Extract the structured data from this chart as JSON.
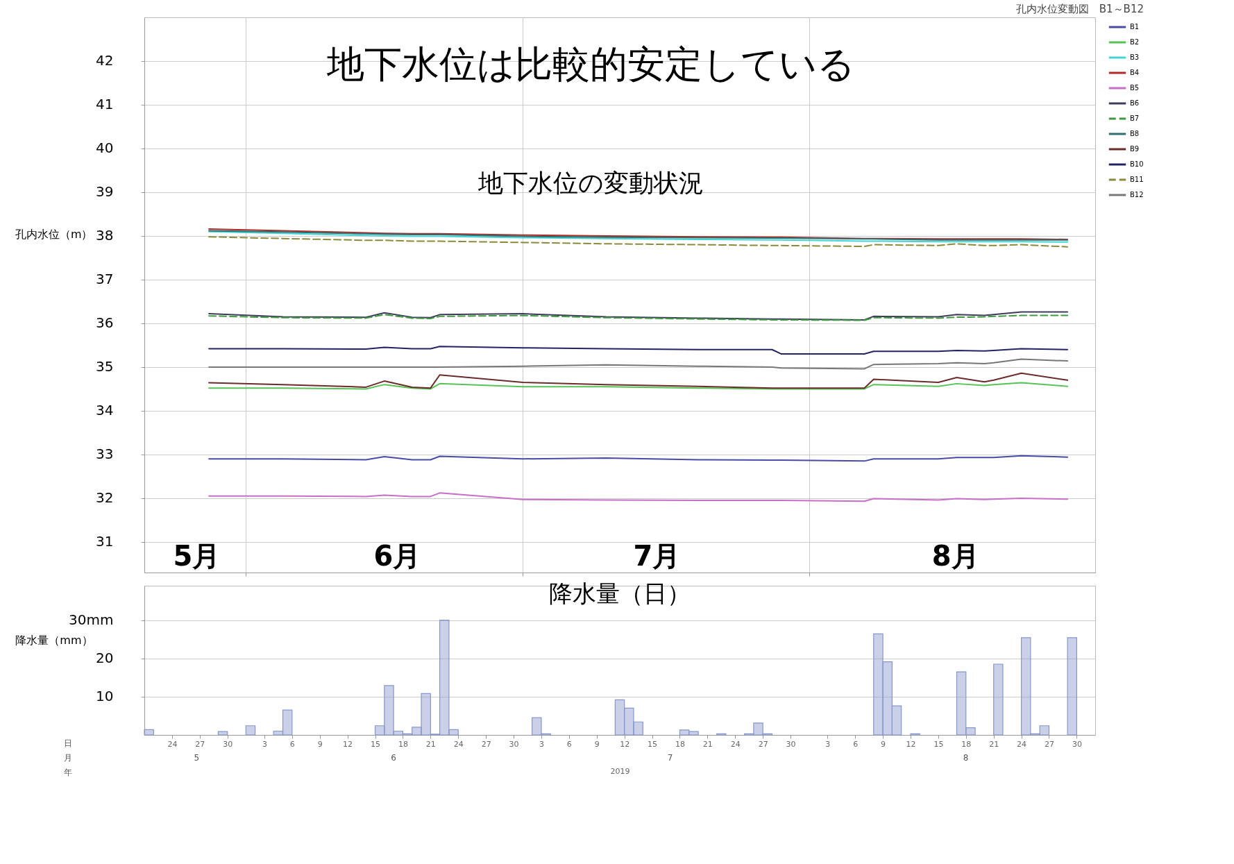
{
  "chart_data": [
    {
      "type": "line",
      "title": "孔内水位変動図　B1～B12",
      "ylabel": "孔内水位（m）",
      "annotations": [
        "地下水位は比較的安定している",
        "地下水位の変動状況",
        "5月",
        "6月",
        "7月",
        "8月"
      ],
      "x": [
        "2019-05-28",
        "2019-06-05",
        "2019-06-14",
        "2019-06-16",
        "2019-06-19",
        "2019-06-21",
        "2019-06-22",
        "2019-07-01",
        "2019-07-10",
        "2019-07-20",
        "2019-07-28",
        "2019-07-29",
        "2019-08-07",
        "2019-08-08",
        "2019-08-15",
        "2019-08-17",
        "2019-08-20",
        "2019-08-21",
        "2019-08-24",
        "2019-08-29"
      ],
      "series": [
        {
          "name": "B1",
          "color": "#4a4aa8",
          "values": [
            32.9,
            32.9,
            32.88,
            32.95,
            32.88,
            32.88,
            32.96,
            32.9,
            32.92,
            32.88,
            32.87,
            32.87,
            32.85,
            32.9,
            32.9,
            32.93,
            32.93,
            32.93,
            32.97,
            32.94
          ]
        },
        {
          "name": "B2",
          "color": "#55c455",
          "values": [
            34.52,
            34.52,
            34.5,
            34.6,
            34.52,
            34.5,
            34.62,
            34.55,
            34.55,
            34.52,
            34.5,
            34.5,
            34.5,
            34.6,
            34.56,
            34.62,
            34.58,
            34.6,
            34.64,
            34.56
          ]
        },
        {
          "name": "B3",
          "color": "#44d4d4",
          "values": [
            38.1,
            38.06,
            38.01,
            38.0,
            37.99,
            37.99,
            37.99,
            37.96,
            37.94,
            37.92,
            37.91,
            37.91,
            37.88,
            37.88,
            37.87,
            37.87,
            37.87,
            37.87,
            37.87,
            37.86
          ]
        },
        {
          "name": "B4",
          "color": "#b02a2a",
          "values": [
            38.16,
            38.12,
            38.07,
            38.06,
            38.05,
            38.05,
            38.05,
            38.02,
            38.0,
            37.98,
            37.97,
            37.97,
            37.94,
            37.94,
            37.93,
            37.93,
            37.93,
            37.93,
            37.93,
            37.92
          ]
        },
        {
          "name": "B5",
          "color": "#c86ec8",
          "values": [
            32.05,
            32.05,
            32.04,
            32.07,
            32.04,
            32.04,
            32.12,
            31.97,
            31.96,
            31.95,
            31.95,
            31.95,
            31.93,
            31.99,
            31.96,
            31.99,
            31.97,
            31.98,
            32.0,
            31.98
          ]
        },
        {
          "name": "B6",
          "color": "#3c3c5a",
          "values": [
            36.22,
            36.15,
            36.14,
            36.24,
            36.14,
            36.13,
            36.2,
            36.22,
            36.15,
            36.12,
            36.1,
            36.1,
            36.08,
            36.16,
            36.15,
            36.2,
            36.18,
            36.2,
            36.26,
            36.26
          ]
        },
        {
          "name": "B7",
          "color": "#3f9a3f",
          "line_style": "dashed",
          "values": [
            36.17,
            36.13,
            36.12,
            36.2,
            36.12,
            36.11,
            36.16,
            36.18,
            36.13,
            36.1,
            36.08,
            36.08,
            36.07,
            36.13,
            36.12,
            36.14,
            36.15,
            36.16,
            36.18,
            36.18
          ]
        },
        {
          "name": "B8",
          "color": "#2e6e6e",
          "values": [
            38.12,
            38.09,
            38.05,
            38.04,
            38.03,
            38.03,
            38.03,
            37.99,
            37.97,
            37.96,
            37.95,
            37.95,
            37.93,
            37.93,
            37.91,
            37.91,
            37.91,
            37.91,
            37.91,
            37.91
          ]
        },
        {
          "name": "B9",
          "color": "#6b2b2b",
          "values": [
            34.64,
            34.6,
            34.54,
            34.68,
            34.54,
            34.52,
            34.82,
            34.65,
            34.6,
            34.56,
            34.52,
            34.52,
            34.52,
            34.72,
            34.65,
            34.76,
            34.66,
            34.7,
            34.86,
            34.7
          ]
        },
        {
          "name": "B10",
          "color": "#222266",
          "values": [
            35.42,
            35.42,
            35.41,
            35.45,
            35.42,
            35.42,
            35.47,
            35.44,
            35.42,
            35.4,
            35.4,
            35.3,
            35.3,
            35.36,
            35.36,
            35.38,
            35.37,
            35.38,
            35.42,
            35.4
          ]
        },
        {
          "name": "B11",
          "color": "#8a8a3a",
          "line_style": "dashed",
          "values": [
            37.98,
            37.94,
            37.9,
            37.9,
            37.88,
            37.88,
            37.88,
            37.85,
            37.82,
            37.8,
            37.78,
            37.78,
            37.76,
            37.8,
            37.78,
            37.82,
            37.78,
            37.78,
            37.8,
            37.75
          ]
        },
        {
          "name": "B12",
          "color": "#777777",
          "values": [
            35.0,
            35.0,
            35.0,
            35.0,
            35.0,
            35.0,
            35.0,
            35.02,
            35.05,
            35.02,
            35.0,
            34.98,
            34.96,
            35.06,
            35.08,
            35.1,
            35.08,
            35.1,
            35.18,
            35.14
          ]
        }
      ],
      "xlim": [
        "2019-05-21",
        "2019-09-01"
      ],
      "ylim": [
        30.3,
        43
      ],
      "xticks": [
        {
          "value": "2019-06-01",
          "label": null
        },
        {
          "value": "2019-07-01",
          "label": null
        },
        {
          "value": "2019-08-01",
          "label": null
        }
      ],
      "yticks": [
        31,
        32,
        33,
        34,
        35,
        36,
        37,
        38,
        39,
        40,
        41,
        42
      ],
      "grid": true,
      "legend": "top right",
      "tick_labels": "y"
    },
    {
      "type": "bar",
      "title": "降水量（日）",
      "ylabel": "降水量（mm）",
      "xlabel": "2019",
      "annotations": [
        "日",
        "月",
        "年",
        "5",
        "6",
        "7",
        "8"
      ],
      "x": [
        "2019-05-21",
        "2019-05-29",
        "2019-06-01",
        "2019-06-04",
        "2019-06-05",
        "2019-06-15",
        "2019-06-16",
        "2019-06-17",
        "2019-06-18",
        "2019-06-19",
        "2019-06-20",
        "2019-06-21",
        "2019-06-22",
        "2019-06-23",
        "2019-07-02",
        "2019-07-03",
        "2019-07-11",
        "2019-07-12",
        "2019-07-13",
        "2019-07-18",
        "2019-07-19",
        "2019-07-22",
        "2019-07-25",
        "2019-07-26",
        "2019-07-27",
        "2019-08-08",
        "2019-08-09",
        "2019-08-10",
        "2019-08-12",
        "2019-08-17",
        "2019-08-18",
        "2019-08-21",
        "2019-08-24",
        "2019-08-25",
        "2019-08-26",
        "2019-08-29"
      ],
      "values": [
        1.4,
        0.9,
        2.4,
        1.0,
        6.5,
        2.4,
        12.9,
        1.0,
        0.3,
        2.0,
        10.8,
        0.2,
        30.0,
        1.4,
        4.5,
        0.3,
        9.2,
        7.0,
        3.4,
        1.3,
        0.9,
        0.3,
        0.3,
        3.1,
        0.3,
        26.4,
        19.1,
        7.6,
        0.3,
        16.5,
        1.9,
        18.5,
        25.4,
        0.3,
        2.4,
        25.4
      ],
      "color": "#8796cc",
      "xlim": [
        "2019-05-21",
        "2019-09-01"
      ],
      "ylim": [
        0,
        39
      ],
      "xticks": [
        {
          "value": "2019-05-24",
          "label": "24"
        },
        {
          "value": "2019-05-27",
          "label": "27"
        },
        {
          "value": "2019-05-30",
          "label": "30"
        },
        {
          "value": "2019-06-03",
          "label": "3"
        },
        {
          "value": "2019-06-06",
          "label": "6"
        },
        {
          "value": "2019-06-09",
          "label": "9"
        },
        {
          "value": "2019-06-12",
          "label": "12"
        },
        {
          "value": "2019-06-15",
          "label": "15"
        },
        {
          "value": "2019-06-18",
          "label": "18"
        },
        {
          "value": "2019-06-21",
          "label": "21"
        },
        {
          "value": "2019-06-24",
          "label": "24"
        },
        {
          "value": "2019-06-27",
          "label": "27"
        },
        {
          "value": "2019-06-30",
          "label": "30"
        },
        {
          "value": "2019-07-03",
          "label": "3"
        },
        {
          "value": "2019-07-06",
          "label": "6"
        },
        {
          "value": "2019-07-09",
          "label": "9"
        },
        {
          "value": "2019-07-12",
          "label": "12"
        },
        {
          "value": "2019-07-15",
          "label": "15"
        },
        {
          "value": "2019-07-18",
          "label": "18"
        },
        {
          "value": "2019-07-21",
          "label": "21"
        },
        {
          "value": "2019-07-24",
          "label": "24"
        },
        {
          "value": "2019-07-27",
          "label": "27"
        },
        {
          "value": "2019-07-30",
          "label": "30"
        },
        {
          "value": "2019-08-03",
          "label": "3"
        },
        {
          "value": "2019-08-06",
          "label": "6"
        },
        {
          "value": "2019-08-09",
          "label": "9"
        },
        {
          "value": "2019-08-12",
          "label": "12"
        },
        {
          "value": "2019-08-15",
          "label": "15"
        },
        {
          "value": "2019-08-18",
          "label": "18"
        },
        {
          "value": "2019-08-21",
          "label": "21"
        },
        {
          "value": "2019-08-24",
          "label": "24"
        },
        {
          "value": "2019-08-27",
          "label": "27"
        },
        {
          "value": "2019-08-30",
          "label": "30"
        }
      ],
      "yticks": [
        10,
        20,
        {
          "value": 30,
          "label": "30mm"
        }
      ],
      "grid": "y"
    }
  ]
}
